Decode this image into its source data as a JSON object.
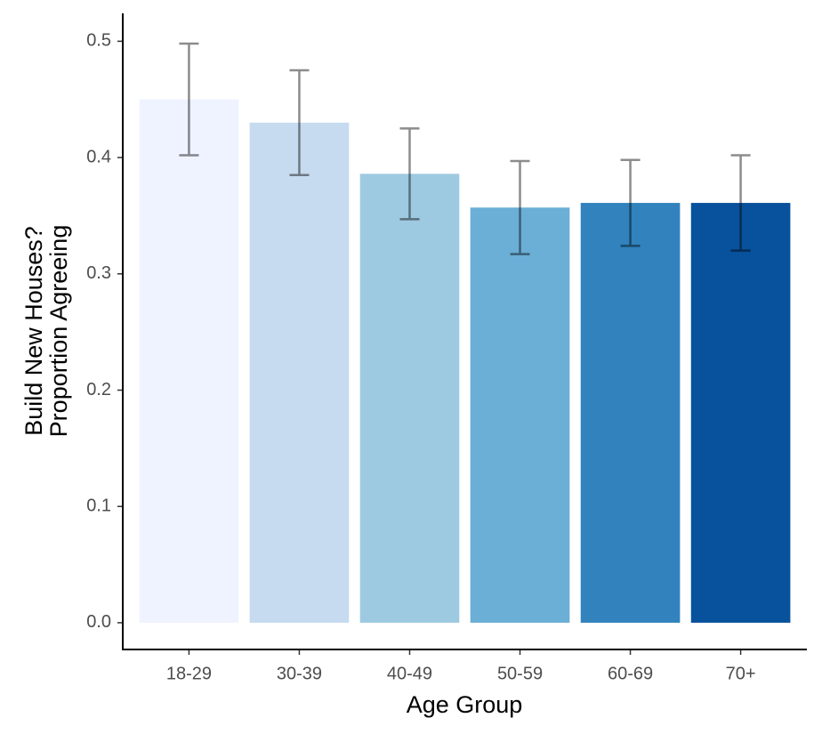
{
  "chart_data": {
    "type": "bar",
    "xlabel": "Age Group",
    "ylabel": [
      "Build New Houses?",
      "Proportion Agreeing"
    ],
    "categories": [
      "18-29",
      "30-39",
      "40-49",
      "50-59",
      "60-69",
      "70+"
    ],
    "values": [
      0.45,
      0.43,
      0.386,
      0.357,
      0.361,
      0.361
    ],
    "errors": [
      0.048,
      0.045,
      0.039,
      0.04,
      0.037,
      0.041
    ],
    "colors": [
      "#eff3ff",
      "#c6dbef",
      "#9ecae1",
      "#6baed6",
      "#3182bd",
      "#08519c"
    ],
    "ylim": [
      -0.023,
      0.524
    ],
    "yticks": [
      {
        "value": 0,
        "label": "0.0"
      },
      0.1,
      0.2,
      0.3,
      0.4,
      0.5
    ]
  }
}
